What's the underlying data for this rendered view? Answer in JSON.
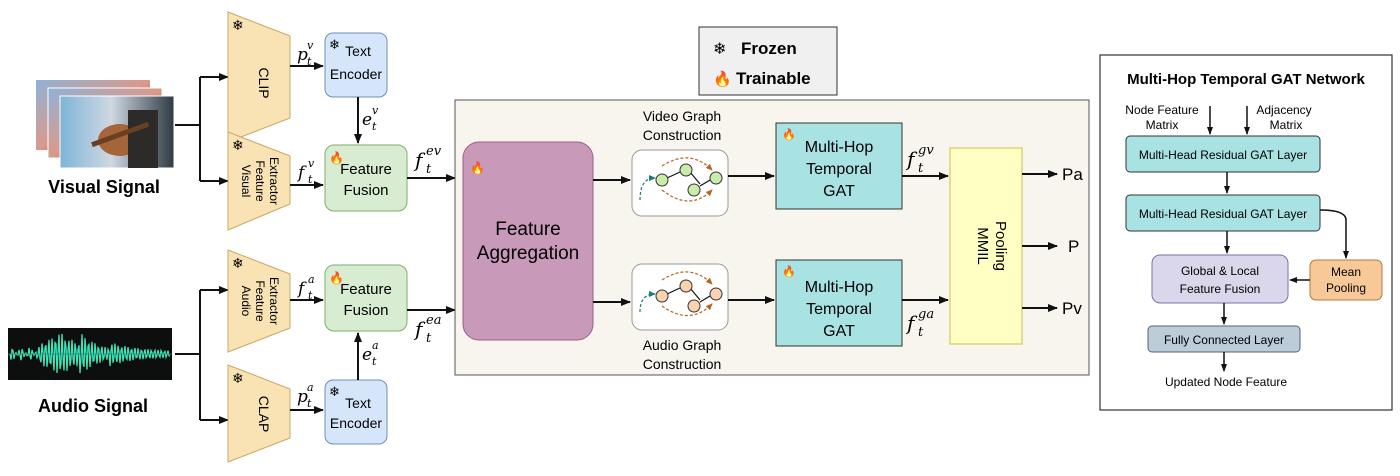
{
  "legend": {
    "frozen": "Frozen",
    "trainable": "Trainable",
    "frozen_icon": "snowflake-icon",
    "trainable_icon": "flame-icon"
  },
  "visual": {
    "signal_label": "Visual Signal",
    "clip": "CLIP",
    "extractor": [
      "Visual",
      "Feature",
      "Extractor"
    ],
    "text_encoder": [
      "Text",
      "Encoder"
    ],
    "fusion": [
      "Feature",
      "Fusion"
    ],
    "p": {
      "base": "p",
      "sub": "t",
      "sup": "v"
    },
    "e": {
      "base": "e",
      "sub": "t",
      "sup": "v"
    },
    "f": {
      "base": "f",
      "sub": "t",
      "sup": "v"
    },
    "fev": {
      "base": "f",
      "sub": "t",
      "sup": "ev"
    }
  },
  "audio": {
    "signal_label": "Audio Signal",
    "clap": "CLAP",
    "extractor": [
      "Audio",
      "Feature",
      "Extractor"
    ],
    "text_encoder": [
      "Text",
      "Encoder"
    ],
    "fusion": [
      "Feature",
      "Fusion"
    ],
    "p": {
      "base": "p",
      "sub": "t",
      "sup": "a"
    },
    "e": {
      "base": "e",
      "sub": "t",
      "sup": "a"
    },
    "f": {
      "base": "f",
      "sub": "t",
      "sup": "a"
    },
    "fea": {
      "base": "f",
      "sub": "t",
      "sup": "ea"
    }
  },
  "main": {
    "aggregation": [
      "Feature",
      "Aggregation"
    ],
    "video_graph": [
      "Video Graph",
      "Construction"
    ],
    "audio_graph": [
      "Audio Graph",
      "Construction"
    ],
    "gat_top": [
      "Multi-Hop",
      "Temporal",
      "GAT"
    ],
    "gat_bottom": [
      "Multi-Hop",
      "Temporal",
      "GAT"
    ],
    "fgv": {
      "base": "f",
      "sub": "t",
      "sup": "gv"
    },
    "fga": {
      "base": "f",
      "sub": "t",
      "sup": "ga"
    },
    "pooling": [
      "MMIL",
      "Pooling"
    ],
    "outputs": [
      "Pa",
      "P",
      "Pv"
    ]
  },
  "gat_panel": {
    "title": "Multi-Hop Temporal GAT Network",
    "node_feature": [
      "Node Feature",
      "Matrix"
    ],
    "adjacency": [
      "Adjacency",
      "Matrix"
    ],
    "layer1": "Multi-Head Residual GAT Layer",
    "layer2": "Multi-Head Residual GAT Layer",
    "fusion": [
      "Global & Local",
      "Feature Fusion"
    ],
    "mean_pool": [
      "Mean",
      "Pooling"
    ],
    "fc": "Fully Connected Layer",
    "output": "Updated Node Feature"
  },
  "colors": {
    "frozen_block": "#f9e3b4",
    "text_encoder": "#d6e6fa",
    "fusion": "#d8ecd1",
    "aggregation": "#c899b8",
    "gat": "#a8e2e2",
    "pooling": "#ffffc4",
    "main_panel": "#f7f5ee",
    "mean_pool": "#f7c999",
    "gf_fusion": "#dad6ec",
    "fc": "#bcccd8"
  }
}
